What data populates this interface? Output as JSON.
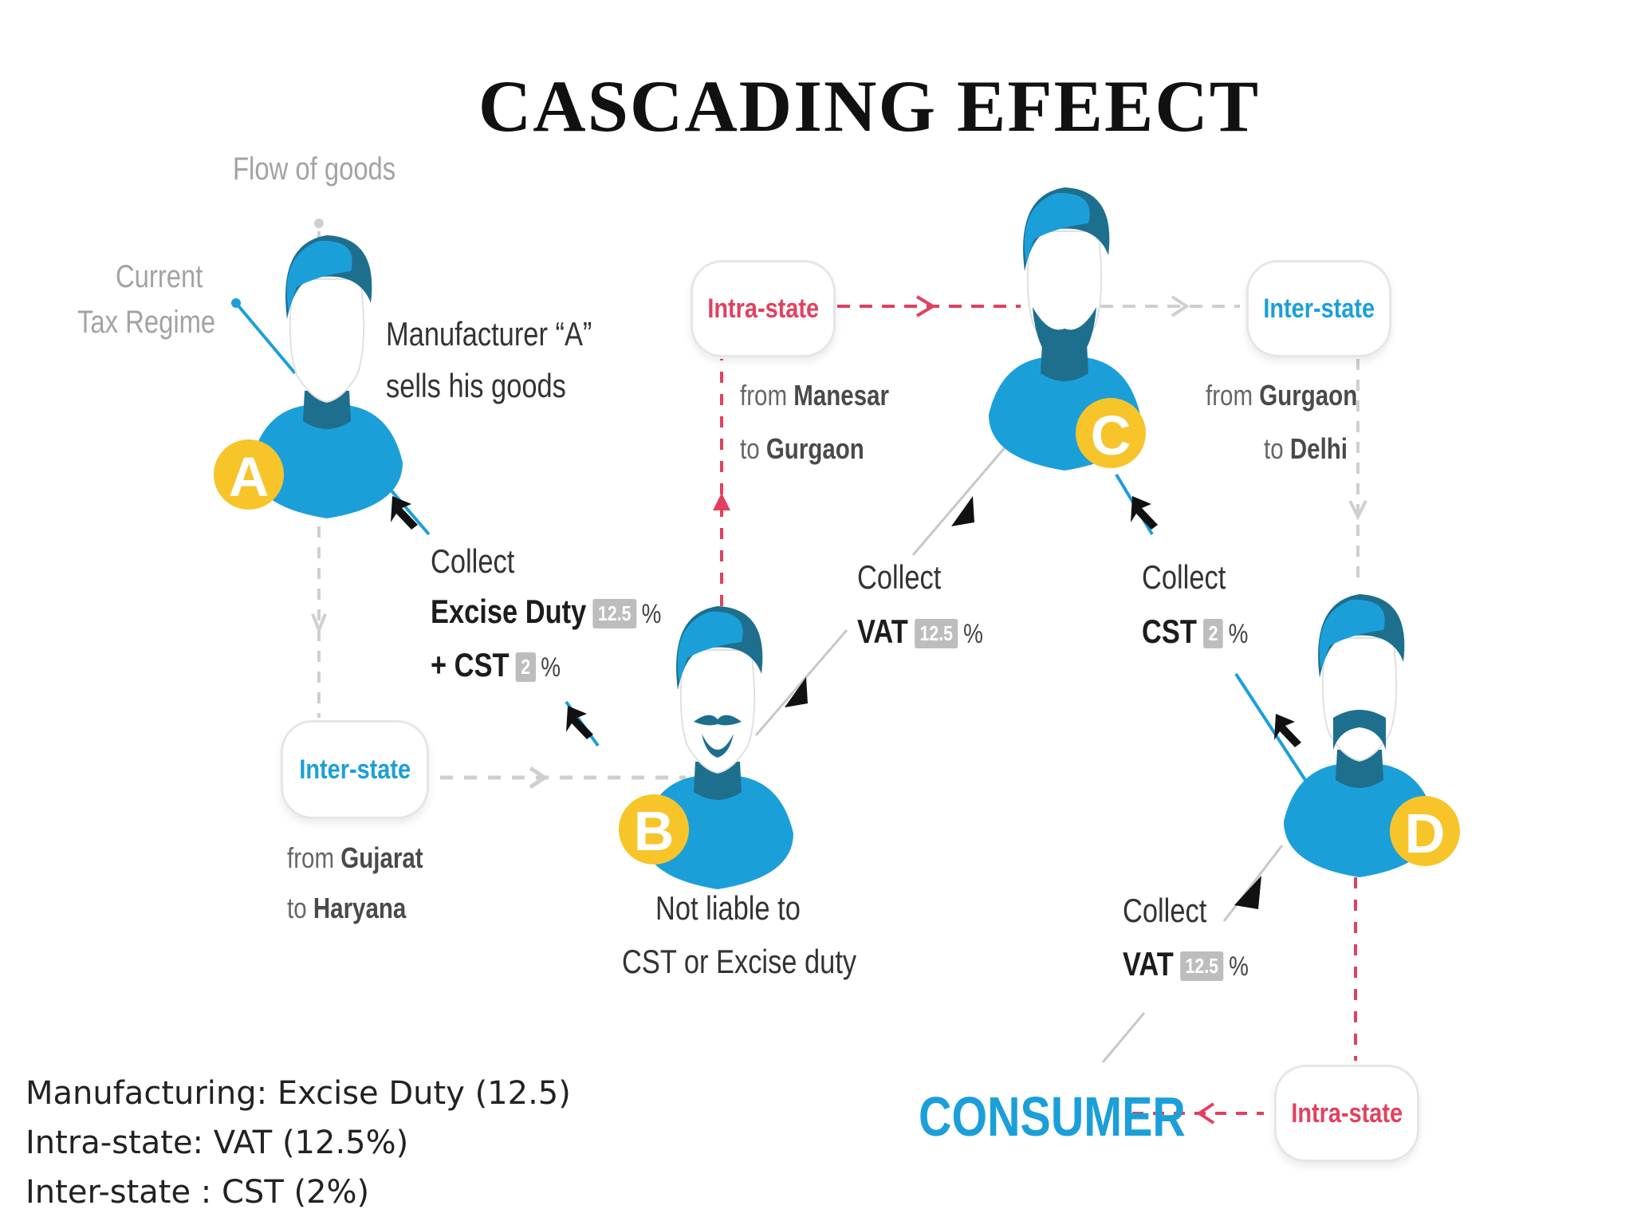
{
  "title": "CASCADING EFEECT",
  "flow_of_goods": "Flow of goods",
  "regime": {
    "line1": "Current",
    "line2": "Tax Regime"
  },
  "manufacturer": {
    "line1": "Manufacturer “A”",
    "line2": "sells his goods"
  },
  "badges": {
    "a": "A",
    "b": "B",
    "c": "C",
    "d": "D"
  },
  "nodes": {
    "pill_intra_top": "Intra-state",
    "pill_inter_top": "Inter-state",
    "pill_inter_left": "Inter-state",
    "pill_intra_bottom": "Intra-state"
  },
  "routes": {
    "manesar": {
      "from": "from",
      "from_place": "Manesar",
      "to": "to",
      "to_place": "Gurgaon"
    },
    "gurgaon_delhi": {
      "from": "from",
      "from_place": "Gurgaon",
      "to": "to",
      "to_place": "Delhi"
    },
    "gujarat": {
      "from": "from",
      "from_place": "Gujarat",
      "to": "to",
      "to_place": "Haryana"
    }
  },
  "collect_a": {
    "collect": "Collect",
    "excise": "Excise Duty",
    "excise_pct": "12.5",
    "cst": "+ CST",
    "cst_pct": "2",
    "pct_sign": "%"
  },
  "collect_c_vat": {
    "collect": "Collect",
    "vat": "VAT",
    "vat_pct": "12.5",
    "pct_sign": "%"
  },
  "collect_c_cst": {
    "collect": "Collect",
    "cst": "CST",
    "cst_pct": "2",
    "pct_sign": "%"
  },
  "collect_d_vat": {
    "collect": "Collect",
    "vat": "VAT",
    "vat_pct": "12.5",
    "pct_sign": "%"
  },
  "not_liable": {
    "line1": "Not liable to",
    "line2": "CST or Excise duty"
  },
  "consumer": "CONSUMER",
  "legend": {
    "line1": "Manufacturing: Excise Duty (12.5)",
    "line2": "Intra-state: VAT (12.5%)",
    "line3": "Inter-state : CST (2%)"
  },
  "colors": {
    "blue": "#1b9fd9",
    "dark_blue": "#1e6f8e",
    "red": "#e2405f",
    "yellow": "#f7c52a",
    "gray": "#cfcfcf"
  }
}
